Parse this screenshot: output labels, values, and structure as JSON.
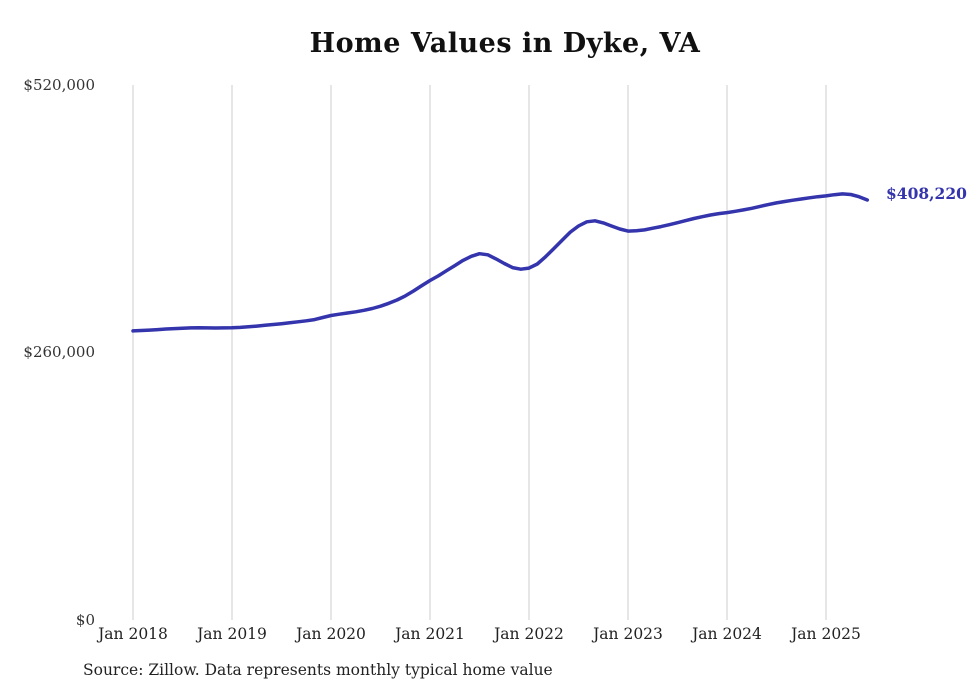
{
  "chart_data": {
    "type": "line",
    "title": "Home Values in Dyke, VA",
    "x_tick_labels": [
      "Jan 2018",
      "Jan 2019",
      "Jan 2020",
      "Jan 2021",
      "Jan 2022",
      "Jan 2023",
      "Jan 2024",
      "Jan 2025"
    ],
    "y_tick_labels": [
      "$520,000",
      "$260,000",
      "$0"
    ],
    "ylim": [
      0,
      520000
    ],
    "grid": "vertical-only",
    "legend_position": "none",
    "frequency": "monthly",
    "start_month": "Jan 2018",
    "end_month": "Jun 2025",
    "series": [
      {
        "name": "Typical home value",
        "values": [
          281000,
          281400,
          281800,
          282300,
          282800,
          283200,
          283600,
          283900,
          284000,
          283900,
          283800,
          283900,
          284000,
          284400,
          285000,
          285700,
          286400,
          287200,
          288000,
          288900,
          289800,
          290800,
          292000,
          294000,
          296000,
          297200,
          298400,
          299600,
          301000,
          302800,
          305000,
          307800,
          311000,
          315000,
          319800,
          325000,
          330000,
          334500,
          339500,
          344500,
          349500,
          353500,
          356000,
          355000,
          351000,
          346500,
          342500,
          341000,
          342000,
          346000,
          353000,
          361000,
          369000,
          377000,
          383000,
          387000,
          388000,
          386000,
          383000,
          380000,
          378000,
          378300,
          379200,
          380800,
          382400,
          384200,
          386200,
          388200,
          390200,
          392000,
          393600,
          395000,
          396000,
          397200,
          398600,
          400200,
          402000,
          403800,
          405400,
          406800,
          408000,
          409200,
          410400,
          411400,
          412200,
          413400,
          414200,
          413600,
          411400,
          408220
        ]
      }
    ],
    "latest_value": 408220,
    "end_label": "$408,220",
    "line_color": "#3434ad",
    "gridline_color": "#cccccc",
    "source_note": "Source: Zillow. Data represents monthly typical home value"
  }
}
